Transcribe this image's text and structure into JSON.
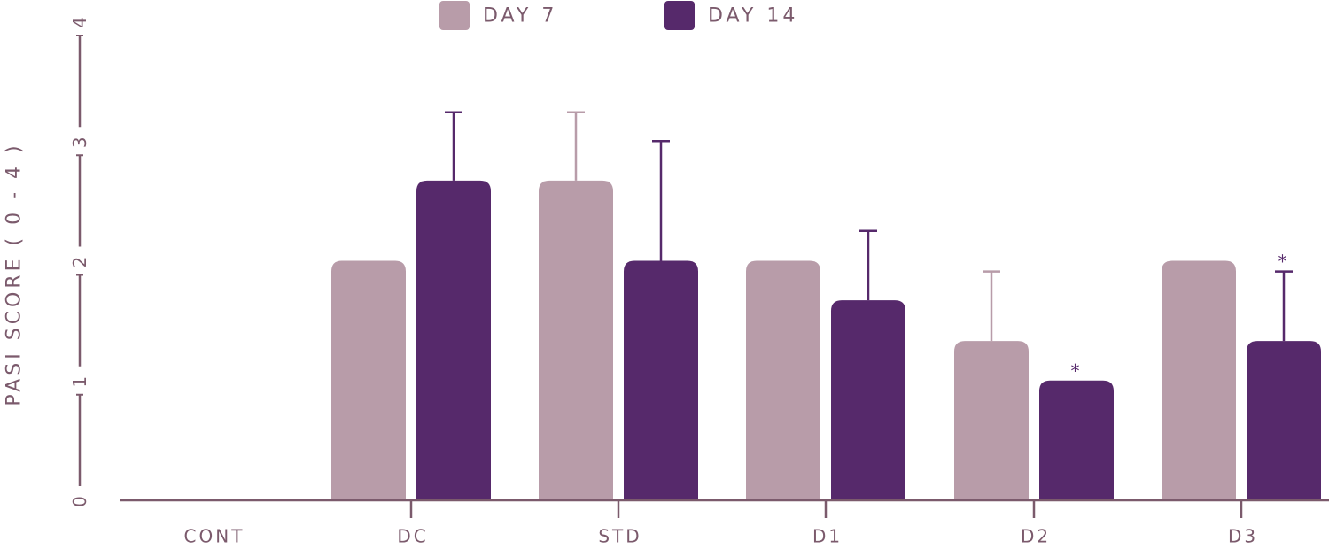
{
  "chart_data": {
    "type": "bar",
    "title": "",
    "xlabel": "",
    "ylabel": "PASI SCORE ( 0 - 4 )",
    "ylim": [
      0,
      4
    ],
    "yticks": [
      "0",
      "1",
      "2",
      "3",
      "4"
    ],
    "categories": [
      "CONT",
      "DC",
      "STD",
      "D1",
      "D2",
      "D3"
    ],
    "legend_position": "top-center",
    "grid": false,
    "series": [
      {
        "name": "DAY 7",
        "color": "#b89ca9",
        "values": [
          0,
          2.0,
          2.67,
          2.0,
          1.33,
          2.0
        ],
        "errors": [
          0,
          0,
          0.57,
          0,
          0.58,
          0
        ],
        "annotations": [
          "",
          "",
          "",
          "",
          "",
          ""
        ]
      },
      {
        "name": "DAY 14",
        "color": "#56296b",
        "values": [
          0,
          2.67,
          2.0,
          1.67,
          1.0,
          1.33
        ],
        "errors": [
          0,
          0.57,
          1.0,
          0.58,
          0,
          0.58
        ],
        "annotations": [
          "",
          "",
          "",
          "",
          "*",
          "*"
        ]
      }
    ],
    "colors": {
      "axis": "#7b5a6c",
      "label": "#7b5a6c"
    }
  }
}
